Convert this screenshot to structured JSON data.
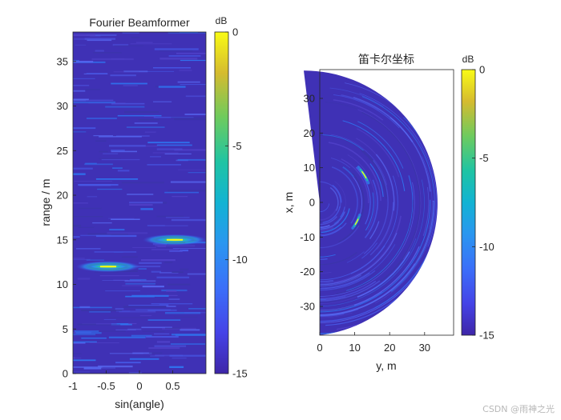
{
  "watermark": "CSDN @雨神之光",
  "chart_data": [
    {
      "type": "heatmap",
      "title": "Fourier Beamformer",
      "xlabel": "sin(angle)",
      "ylabel": "range / m",
      "xlim": [
        -1,
        1
      ],
      "ylim": [
        0,
        38.3
      ],
      "xticks": [
        -1,
        -0.5,
        0,
        0.5
      ],
      "xtick_labels": [
        "-1",
        "-0.5",
        "0",
        "0.5"
      ],
      "yticks": [
        0,
        5,
        10,
        15,
        20,
        25,
        30,
        35
      ],
      "colorscale": "parula",
      "colorbar": {
        "label": "dB",
        "range": [
          -15,
          0
        ],
        "ticks": [
          0,
          -5,
          -10,
          -15
        ],
        "tick_labels": [
          "0",
          "-5",
          "-10",
          "-15"
        ]
      },
      "targets": [
        {
          "sin_angle": -0.47,
          "range_m": 12.0,
          "peak_db": 0
        },
        {
          "sin_angle": 0.53,
          "range_m": 15.0,
          "peak_db": 0
        }
      ]
    },
    {
      "type": "heatmap",
      "title": "笛卡尔坐标",
      "xlabel": "y, m",
      "ylabel": "x, m",
      "xlim": [
        0,
        38.3
      ],
      "ylim": [
        -38.3,
        38.3
      ],
      "xticks": [
        0,
        10,
        20,
        30
      ],
      "yticks": [
        -30,
        -20,
        -10,
        0,
        10,
        20,
        30
      ],
      "colorscale": "parula",
      "colorbar": {
        "label": "dB",
        "range": [
          -15,
          0
        ],
        "ticks": [
          0,
          -5,
          -10,
          -15
        ],
        "tick_labels": [
          "0",
          "-5",
          "-10",
          "-15"
        ]
      },
      "targets": [
        {
          "y_m": 10.6,
          "x_m": -5.6,
          "peak_db": 0
        },
        {
          "y_m": 12.7,
          "x_m": 8.0,
          "peak_db": 0
        }
      ]
    }
  ]
}
